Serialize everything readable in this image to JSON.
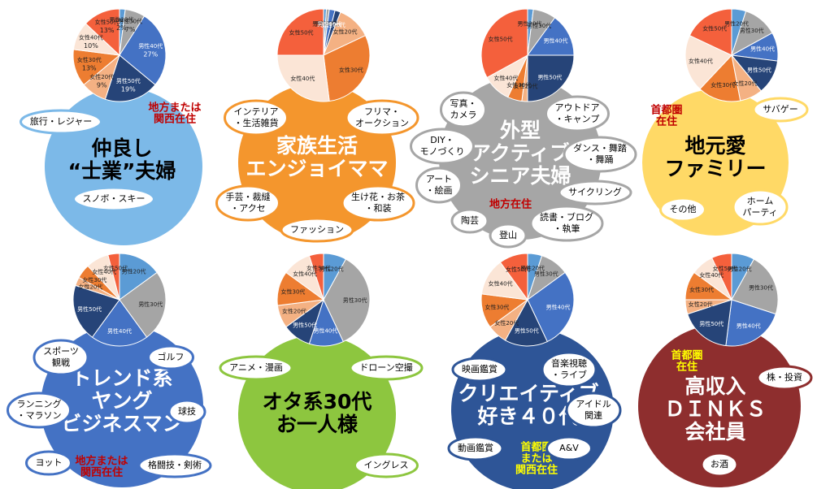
{
  "chart_data": [
    {
      "type": "pie",
      "title": [
        "仲良し",
        "“士業”夫婦"
      ],
      "region": [
        "地方または",
        "関西在住"
      ],
      "categories": [
        "男性20代",
        "男性30代",
        "男性40代",
        "男性50代",
        "女性20代",
        "女性30代",
        "女性40代",
        "女性50代"
      ],
      "values": [
        2,
        7,
        27,
        19,
        9,
        13,
        10,
        13
      ],
      "value_labels": [
        "2%",
        "7%",
        "27%",
        "19%",
        "9%",
        "13%",
        "10%",
        "13%"
      ],
      "colors": [
        "#5b9bd5",
        "#a5a5a5",
        "#4472c4",
        "#264478",
        "#f4b183",
        "#ed7d31",
        "#fbe5d6",
        "#f4603c"
      ],
      "panel_color": "#7cb9e8",
      "text_color": "#000000",
      "region_color": "#c00000",
      "annotations": [
        [
          "旅行・レジャー"
        ],
        [
          "スノボ・スキー"
        ]
      ]
    },
    {
      "type": "pie",
      "title": [
        "家族生活",
        "エンジョイママ"
      ],
      "categories": [
        "男性20代",
        "男性30代",
        "男性40代",
        "男性50代",
        "女性20代",
        "女性30代",
        "女性40代",
        "女性50代"
      ],
      "values": [
        1,
        1,
        2,
        2,
        12,
        30,
        27,
        25
      ],
      "colors": [
        "#5b9bd5",
        "#a5a5a5",
        "#4472c4",
        "#264478",
        "#f4b183",
        "#ed7d31",
        "#fbe5d6",
        "#f4603c"
      ],
      "panel_color": "#f4962d",
      "text_color": "#ffffff",
      "annotations": [
        [
          "インテリア",
          "・生活雑貨"
        ],
        [
          "フリマ・",
          "オークション"
        ],
        [
          "手芸・裁縫",
          "・アクセ"
        ],
        [
          "生け花・お茶",
          "・和装"
        ],
        [
          "ファッション"
        ]
      ]
    },
    {
      "type": "pie",
      "title": [
        "外型",
        "アクティブ",
        "シニア夫婦"
      ],
      "region": [
        "地方在住"
      ],
      "categories": [
        "男性20代",
        "男性30代",
        "男性40代",
        "男性50代",
        "女性20代",
        "女性30代",
        "女性40代",
        "女性50代"
      ],
      "values": [
        2,
        8,
        15,
        25,
        2,
        5,
        10,
        33
      ],
      "colors": [
        "#5b9bd5",
        "#a5a5a5",
        "#4472c4",
        "#264478",
        "#f4b183",
        "#ed7d31",
        "#fbe5d6",
        "#f4603c"
      ],
      "panel_color": "#a6a6a6",
      "text_color": "#ffffff",
      "region_color": "#c00000",
      "annotations": [
        [
          "写真・",
          "カメラ"
        ],
        [
          "アウトドア",
          "・キャンプ"
        ],
        [
          "DIY・",
          "モノづくり"
        ],
        [
          "ダンス・舞踏",
          "・舞踊"
        ],
        [
          "アート",
          "・絵画"
        ],
        [
          "サイクリング"
        ],
        [
          "陶芸"
        ],
        [
          "登山"
        ],
        [
          "読書・ブログ",
          "・執筆"
        ]
      ]
    },
    {
      "type": "pie",
      "title": [
        "地元愛",
        "ファミリー"
      ],
      "region": [
        "首都圏",
        "在住"
      ],
      "categories": [
        "男性20代",
        "男性30代",
        "男性40代",
        "男性50代",
        "女性20代",
        "女性30代",
        "女性40代",
        "女性50代"
      ],
      "values": [
        5,
        12,
        10,
        12,
        8,
        15,
        20,
        18
      ],
      "colors": [
        "#5b9bd5",
        "#a5a5a5",
        "#4472c4",
        "#264478",
        "#f4b183",
        "#ed7d31",
        "#fbe5d6",
        "#f4603c"
      ],
      "panel_color": "#ffd966",
      "text_color": "#000000",
      "region_color": "#c00000",
      "annotations": [
        [
          "サバゲー"
        ],
        [
          "その他"
        ],
        [
          "ホーム",
          "パーティ"
        ]
      ]
    },
    {
      "type": "pie",
      "title": [
        "トレンド系",
        "ヤング",
        "ビジネスマン"
      ],
      "region": [
        "地方または",
        "関西在住"
      ],
      "categories": [
        "男性20代",
        "男性30代",
        "男性40代",
        "男性50代",
        "女性20代",
        "女性30代",
        "女性40代",
        "女性50代"
      ],
      "values": [
        15,
        25,
        20,
        20,
        3,
        5,
        8,
        4
      ],
      "colors": [
        "#5b9bd5",
        "#a5a5a5",
        "#4472c4",
        "#264478",
        "#f4b183",
        "#ed7d31",
        "#fbe5d6",
        "#f4603c"
      ],
      "panel_color": "#4472c4",
      "text_color": "#ffffff",
      "region_color": "#c00000",
      "annotations": [
        [
          "スポーツ",
          "観戦"
        ],
        [
          "ゴルフ"
        ],
        [
          "ランニング",
          "・マラソン"
        ],
        [
          "球技"
        ],
        [
          "ヨット"
        ],
        [
          "格闘技・剣術"
        ]
      ]
    },
    {
      "type": "pie",
      "title": [
        "オタ系30代",
        "お一人様"
      ],
      "categories": [
        "男性20代",
        "男性30代",
        "男性40代",
        "男性50代",
        "女性20代",
        "女性30代",
        "女性40代",
        "女性50代"
      ],
      "values": [
        8,
        35,
        12,
        10,
        8,
        12,
        10,
        5
      ],
      "colors": [
        "#5b9bd5",
        "#a5a5a5",
        "#4472c4",
        "#264478",
        "#f4b183",
        "#ed7d31",
        "#fbe5d6",
        "#f4603c"
      ],
      "panel_color": "#8dc63f",
      "text_color": "#000000",
      "annotations": [
        [
          "アニメ・漫画"
        ],
        [
          "ドローン空撮"
        ],
        [
          "イングレス"
        ]
      ]
    },
    {
      "type": "pie",
      "title": [
        "クリエイティブ",
        "好き４０代"
      ],
      "region": [
        "首都圏",
        "または",
        "関西在住"
      ],
      "categories": [
        "男性20代",
        "男性30代",
        "男性40代",
        "男性50代",
        "女性20代",
        "女性30代",
        "女性40代",
        "女性50代"
      ],
      "values": [
        5,
        10,
        28,
        15,
        7,
        12,
        13,
        10
      ],
      "colors": [
        "#5b9bd5",
        "#a5a5a5",
        "#4472c4",
        "#264478",
        "#f4b183",
        "#ed7d31",
        "#fbe5d6",
        "#f4603c"
      ],
      "panel_color": "#2e5597",
      "text_color": "#ffffff",
      "region_color": "#ffff00",
      "annotations": [
        [
          "映画鑑賞"
        ],
        [
          "音楽視聴",
          "・ライブ"
        ],
        [
          "アイドル",
          "関連"
        ],
        [
          "動画鑑賞"
        ],
        [
          "A&V"
        ]
      ]
    },
    {
      "type": "pie",
      "title": [
        "高収入",
        "ＤＩＮＫＳ",
        "会社員"
      ],
      "region": [
        "首都圏",
        "在住"
      ],
      "categories": [
        "男性20代",
        "男性30代",
        "男性40代",
        "男性50代",
        "女性20代",
        "女性30代",
        "女性40代",
        "女性50代"
      ],
      "values": [
        8,
        22,
        22,
        18,
        5,
        10,
        8,
        7
      ],
      "colors": [
        "#5b9bd5",
        "#a5a5a5",
        "#4472c4",
        "#264478",
        "#f4b183",
        "#ed7d31",
        "#fbe5d6",
        "#f4603c"
      ],
      "panel_color": "#8e2e2e",
      "text_color": "#ffffff",
      "region_color": "#ffff00",
      "annotations": [
        [
          "株・投資"
        ],
        [
          "お酒"
        ]
      ]
    }
  ]
}
